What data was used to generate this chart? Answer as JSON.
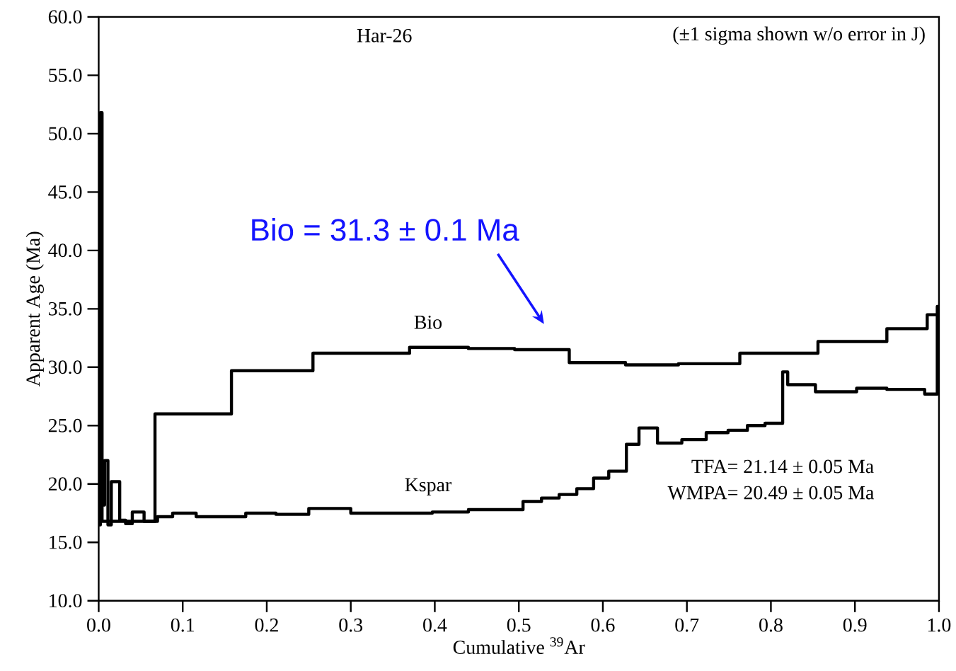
{
  "chart_data": {
    "type": "step",
    "title": "Har-26",
    "subtitle": "(±1 sigma shown w/o error in J)",
    "xlabel": "Cumulative $^{39}$Ar",
    "ylabel": "Apparent Age (Ma)",
    "xlim": [
      0,
      1
    ],
    "ylim": [
      10,
      60
    ],
    "xticks": [
      {
        "value": 0,
        "label": "0.0"
      },
      {
        "value": 0.1,
        "label": "0.1"
      },
      {
        "value": 0.2,
        "label": "0.2"
      },
      {
        "value": 0.3,
        "label": "0.3"
      },
      {
        "value": 0.4,
        "label": "0.4"
      },
      {
        "value": 0.5,
        "label": "0.5"
      },
      {
        "value": 0.6,
        "label": "0.6"
      },
      {
        "value": 0.7,
        "label": "0.7"
      },
      {
        "value": 0.8,
        "label": "0.8"
      },
      {
        "value": 0.9,
        "label": "0.9"
      },
      {
        "value": 1,
        "label": "1.0"
      }
    ],
    "yticks": [
      {
        "value": 10,
        "label": "10.0"
      },
      {
        "value": 15,
        "label": "15.0"
      },
      {
        "value": 20,
        "label": "20.0"
      },
      {
        "value": 25,
        "label": "25.0"
      },
      {
        "value": 30,
        "label": "30.0"
      },
      {
        "value": 35,
        "label": "35.0"
      },
      {
        "value": 40,
        "label": "40.0"
      },
      {
        "value": 45,
        "label": "45.0"
      },
      {
        "value": 50,
        "label": "50.0"
      },
      {
        "value": 55,
        "label": "55.0"
      },
      {
        "value": 60,
        "label": "60.0"
      }
    ],
    "series": [
      {
        "name": "Bio",
        "color": "#000000",
        "x": [
          0,
          0.004,
          0.067,
          0.158,
          0.255,
          0.37,
          0.44,
          0.495,
          0.56,
          0.627,
          0.69,
          0.763,
          0.856,
          0.938,
          0.986,
          1
        ],
        "values": [
          19.9,
          16.8,
          26.0,
          29.7,
          31.2,
          31.7,
          31.6,
          31.5,
          30.4,
          30.2,
          30.3,
          31.2,
          32.2,
          33.3,
          34.5,
          34.5
        ]
      },
      {
        "name": "Kspar",
        "color": "#000000",
        "x": [
          0,
          0.002,
          0.004,
          0.007,
          0.011,
          0.015,
          0.025,
          0.032,
          0.04,
          0.054,
          0.07,
          0.088,
          0.116,
          0.175,
          0.211,
          0.25,
          0.3,
          0.397,
          0.44,
          0.505,
          0.527,
          0.548,
          0.569,
          0.589,
          0.607,
          0.628,
          0.643,
          0.665,
          0.694,
          0.723,
          0.749,
          0.772,
          0.793,
          0.814,
          0.82,
          0.853,
          0.902,
          0.938,
          0.983,
          0.998,
          1
        ],
        "values": [
          16.5,
          51.8,
          18.2,
          22.0,
          16.5,
          20.2,
          16.9,
          16.6,
          17.6,
          16.8,
          17.2,
          17.5,
          17.2,
          17.5,
          17.4,
          17.9,
          17.5,
          17.6,
          17.8,
          18.5,
          18.8,
          19.1,
          19.6,
          20.5,
          21.1,
          23.4,
          24.8,
          23.5,
          23.8,
          24.4,
          24.6,
          25.0,
          25.2,
          29.6,
          28.5,
          27.9,
          28.2,
          28.1,
          27.7,
          35.2,
          35.2
        ]
      }
    ],
    "annotations": [
      "Bio = 31.3 ± 0.1 Ma",
      "TFA= 21.14 ± 0.05 Ma",
      "WMPA= 20.49 ± 0.05 Ma"
    ],
    "line_style": "solid",
    "marker": "none",
    "grid": false
  }
}
